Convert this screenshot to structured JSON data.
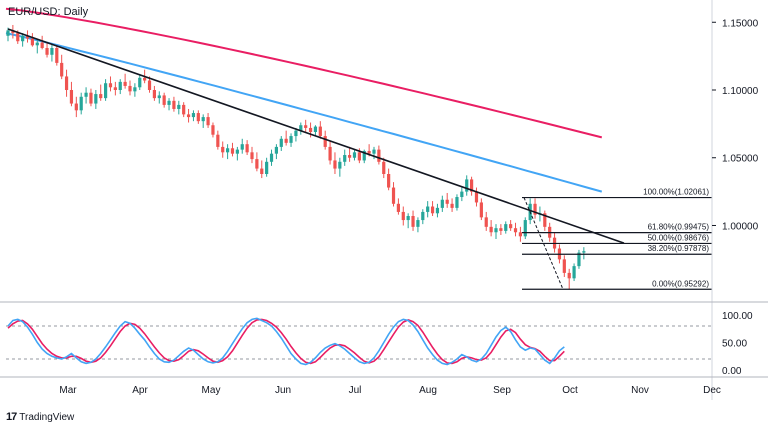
{
  "title": "EUR/USD: Daily",
  "brand": "TradingView",
  "brand_logo": "17",
  "chart_data": {
    "type": "candlestick",
    "title": "EUR/USD: Daily",
    "price_axis": {
      "ticks": [
        1.15,
        1.1,
        1.05,
        1.0
      ],
      "tick_labels": [
        "1.15000",
        "1.10000",
        "1.05000",
        "1.00000"
      ],
      "ylim": [
        0.945,
        1.162
      ]
    },
    "time_axis": {
      "labels": [
        "Mar",
        "Apr",
        "May",
        "Jun",
        "Jul",
        "Aug",
        "Sep",
        "Oct",
        "Nov",
        "Dec"
      ]
    },
    "candles_ohlc": [
      [
        1.14,
        1.146,
        1.136,
        1.144
      ],
      [
        1.144,
        1.148,
        1.138,
        1.142
      ],
      [
        1.142,
        1.144,
        1.134,
        1.136
      ],
      [
        1.136,
        1.142,
        1.132,
        1.14
      ],
      [
        1.14,
        1.144,
        1.135,
        1.138
      ],
      [
        1.138,
        1.142,
        1.132,
        1.133
      ],
      [
        1.133,
        1.138,
        1.127,
        1.135
      ],
      [
        1.135,
        1.14,
        1.13,
        1.131
      ],
      [
        1.131,
        1.135,
        1.124,
        1.126
      ],
      [
        1.126,
        1.134,
        1.121,
        1.131
      ],
      [
        1.131,
        1.133,
        1.118,
        1.12
      ],
      [
        1.12,
        1.126,
        1.108,
        1.11
      ],
      [
        1.11,
        1.115,
        1.095,
        1.1
      ],
      [
        1.1,
        1.106,
        1.088,
        1.09
      ],
      [
        1.09,
        1.095,
        1.08,
        1.085
      ],
      [
        1.085,
        1.098,
        1.082,
        1.095
      ],
      [
        1.095,
        1.102,
        1.09,
        1.098
      ],
      [
        1.098,
        1.101,
        1.088,
        1.09
      ],
      [
        1.09,
        1.1,
        1.086,
        1.097
      ],
      [
        1.097,
        1.104,
        1.092,
        1.094
      ],
      [
        1.094,
        1.108,
        1.092,
        1.105
      ],
      [
        1.105,
        1.11,
        1.099,
        1.102
      ],
      [
        1.102,
        1.106,
        1.096,
        1.1
      ],
      [
        1.1,
        1.108,
        1.097,
        1.106
      ],
      [
        1.106,
        1.112,
        1.101,
        1.103
      ],
      [
        1.103,
        1.107,
        1.096,
        1.099
      ],
      [
        1.099,
        1.105,
        1.095,
        1.102
      ],
      [
        1.102,
        1.111,
        1.1,
        1.109
      ],
      [
        1.109,
        1.115,
        1.105,
        1.107
      ],
      [
        1.107,
        1.11,
        1.098,
        1.1
      ],
      [
        1.1,
        1.103,
        1.092,
        1.094
      ],
      [
        1.094,
        1.099,
        1.09,
        1.096
      ],
      [
        1.096,
        1.098,
        1.087,
        1.089
      ],
      [
        1.089,
        1.094,
        1.085,
        1.092
      ],
      [
        1.092,
        1.095,
        1.084,
        1.086
      ],
      [
        1.086,
        1.092,
        1.082,
        1.089
      ],
      [
        1.089,
        1.091,
        1.08,
        1.082
      ],
      [
        1.082,
        1.086,
        1.076,
        1.08
      ],
      [
        1.08,
        1.085,
        1.077,
        1.083
      ],
      [
        1.083,
        1.085,
        1.075,
        1.077
      ],
      [
        1.077,
        1.082,
        1.072,
        1.08
      ],
      [
        1.08,
        1.083,
        1.072,
        1.074
      ],
      [
        1.074,
        1.076,
        1.065,
        1.067
      ],
      [
        1.067,
        1.07,
        1.056,
        1.058
      ],
      [
        1.058,
        1.062,
        1.05,
        1.054
      ],
      [
        1.054,
        1.06,
        1.049,
        1.057
      ],
      [
        1.057,
        1.061,
        1.051,
        1.053
      ],
      [
        1.053,
        1.058,
        1.048,
        1.056
      ],
      [
        1.056,
        1.064,
        1.053,
        1.06
      ],
      [
        1.06,
        1.063,
        1.052,
        1.054
      ],
      [
        1.054,
        1.058,
        1.046,
        1.049
      ],
      [
        1.049,
        1.054,
        1.04,
        1.042
      ],
      [
        1.042,
        1.048,
        1.035,
        1.038
      ],
      [
        1.038,
        1.05,
        1.036,
        1.047
      ],
      [
        1.047,
        1.056,
        1.044,
        1.053
      ],
      [
        1.053,
        1.06,
        1.049,
        1.058
      ],
      [
        1.058,
        1.066,
        1.055,
        1.064
      ],
      [
        1.064,
        1.07,
        1.059,
        1.061
      ],
      [
        1.061,
        1.068,
        1.058,
        1.066
      ],
      [
        1.066,
        1.072,
        1.062,
        1.07
      ],
      [
        1.07,
        1.076,
        1.067,
        1.074
      ],
      [
        1.074,
        1.078,
        1.069,
        1.072
      ],
      [
        1.072,
        1.076,
        1.065,
        1.069
      ],
      [
        1.069,
        1.074,
        1.066,
        1.073
      ],
      [
        1.073,
        1.077,
        1.064,
        1.066
      ],
      [
        1.066,
        1.07,
        1.056,
        1.058
      ],
      [
        1.058,
        1.062,
        1.045,
        1.048
      ],
      [
        1.048,
        1.054,
        1.038,
        1.042
      ],
      [
        1.042,
        1.05,
        1.036,
        1.047
      ],
      [
        1.047,
        1.056,
        1.044,
        1.052
      ],
      [
        1.052,
        1.058,
        1.047,
        1.05
      ],
      [
        1.05,
        1.056,
        1.048,
        1.054
      ],
      [
        1.054,
        1.057,
        1.046,
        1.048
      ],
      [
        1.048,
        1.056,
        1.046,
        1.055
      ],
      [
        1.055,
        1.06,
        1.051,
        1.053
      ],
      [
        1.053,
        1.058,
        1.049,
        1.056
      ],
      [
        1.056,
        1.059,
        1.045,
        1.047
      ],
      [
        1.047,
        1.05,
        1.035,
        1.038
      ],
      [
        1.038,
        1.042,
        1.026,
        1.028
      ],
      [
        1.028,
        1.032,
        1.014,
        1.016
      ],
      [
        1.016,
        1.02,
        1.008,
        1.01
      ],
      [
        1.01,
        1.014,
        1.0,
        1.004
      ],
      [
        1.004,
        1.009,
        0.998,
        1.007
      ],
      [
        1.007,
        1.011,
        0.996,
        0.999
      ],
      [
        0.999,
        1.006,
        0.995,
        1.004
      ],
      [
        1.004,
        1.012,
        1.001,
        1.01
      ],
      [
        1.01,
        1.018,
        1.006,
        1.014
      ],
      [
        1.014,
        1.018,
        1.007,
        1.009
      ],
      [
        1.009,
        1.016,
        1.006,
        1.013
      ],
      [
        1.013,
        1.022,
        1.01,
        1.019
      ],
      [
        1.019,
        1.024,
        1.013,
        1.016
      ],
      [
        1.016,
        1.02,
        1.01,
        1.013
      ],
      [
        1.013,
        1.023,
        1.011,
        1.021
      ],
      [
        1.021,
        1.028,
        1.018,
        1.025
      ],
      [
        1.025,
        1.037,
        1.022,
        1.034
      ],
      [
        1.034,
        1.036,
        1.022,
        1.025
      ],
      [
        1.025,
        1.028,
        1.014,
        1.017
      ],
      [
        1.017,
        1.02,
        1.004,
        1.006
      ],
      [
        1.006,
        1.01,
        0.996,
        0.999
      ],
      [
        0.999,
        1.004,
        0.992,
        0.995
      ],
      [
        0.995,
        1.001,
        0.99,
        0.998
      ],
      [
        0.998,
        1.001,
        0.993,
        0.996
      ],
      [
        0.996,
        1.003,
        0.994,
        1.001
      ],
      [
        1.001,
        1.004,
        0.996,
        0.998
      ],
      [
        0.998,
        1.002,
        0.992,
        0.995
      ],
      [
        0.995,
        0.999,
        0.988,
        0.992
      ],
      [
        0.992,
        1.006,
        0.99,
        1.004
      ],
      [
        1.004,
        1.02,
        1.001,
        1.016
      ],
      [
        1.016,
        1.02,
        1.005,
        1.008
      ],
      [
        1.008,
        1.014,
        1.003,
        1.009
      ],
      [
        1.009,
        1.011,
        0.996,
        0.999
      ],
      [
        0.999,
        1.002,
        0.988,
        0.991
      ],
      [
        0.991,
        0.995,
        0.98,
        0.983
      ],
      [
        0.983,
        0.986,
        0.972,
        0.975
      ],
      [
        0.975,
        0.978,
        0.962,
        0.965
      ],
      [
        0.965,
        0.968,
        0.953,
        0.961
      ],
      [
        0.961,
        0.972,
        0.959,
        0.97
      ],
      [
        0.97,
        0.982,
        0.968,
        0.98
      ],
      [
        0.98,
        0.984,
        0.975,
        0.981
      ]
    ],
    "moving_averages": [
      {
        "color": "#e91e63",
        "from": 1.16,
        "to": 1.065
      },
      {
        "color": "#42a5f5",
        "from": 1.142,
        "to": 1.025
      }
    ],
    "trendline": {
      "color": "#131722",
      "from_price": 1.145,
      "to_price": 0.987
    },
    "fibonacci": [
      {
        "label": "100.00%(1.02061)",
        "price": 1.02061
      },
      {
        "label": "61.80%(0.99475)",
        "price": 0.99475
      },
      {
        "label": "50.00%(0.98676)",
        "price": 0.98676
      },
      {
        "label": "38.20%(0.97878)",
        "price": 0.97878
      },
      {
        "label": "0.00%(0.95292)",
        "price": 0.95292
      }
    ],
    "stochastic": {
      "ticks": [
        100,
        50,
        0
      ],
      "tick_labels": [
        "100.00",
        "50.00",
        "0.00"
      ],
      "levels": [
        80,
        20
      ],
      "k_color": "#42a5f5",
      "d_color": "#e91e63",
      "k": [
        80,
        90,
        92,
        88,
        78,
        65,
        50,
        38,
        30,
        25,
        22,
        20,
        24,
        30,
        22,
        15,
        12,
        14,
        20,
        30,
        42,
        55,
        68,
        80,
        88,
        85,
        76,
        65,
        55,
        42,
        30,
        20,
        15,
        14,
        18,
        26,
        34,
        40,
        36,
        28,
        20,
        15,
        13,
        15,
        22,
        34,
        48,
        62,
        75,
        86,
        92,
        94,
        90,
        86,
        80,
        70,
        58,
        44,
        30,
        20,
        12,
        10,
        14,
        22,
        32,
        40,
        45,
        48,
        44,
        38,
        30,
        22,
        15,
        12,
        14,
        22,
        35,
        50,
        65,
        78,
        88,
        92,
        90,
        82,
        70,
        55,
        40,
        28,
        18,
        12,
        10,
        14,
        20,
        28,
        24,
        18,
        15,
        20,
        30,
        45,
        60,
        72,
        78,
        70,
        55,
        42,
        36,
        40,
        38,
        28,
        18,
        12,
        22,
        35,
        42
      ],
      "d": [
        76,
        84,
        89,
        90,
        84,
        74,
        61,
        48,
        38,
        30,
        25,
        22,
        22,
        25,
        25,
        21,
        16,
        14,
        16,
        22,
        32,
        44,
        57,
        70,
        80,
        85,
        83,
        76,
        66,
        54,
        42,
        31,
        22,
        17,
        16,
        19,
        26,
        34,
        37,
        35,
        29,
        22,
        16,
        14,
        17,
        24,
        35,
        49,
        63,
        76,
        86,
        91,
        92,
        90,
        85,
        78,
        68,
        56,
        43,
        31,
        21,
        14,
        12,
        15,
        23,
        32,
        40,
        45,
        46,
        44,
        38,
        31,
        23,
        16,
        13,
        16,
        24,
        37,
        51,
        65,
        78,
        87,
        91,
        88,
        81,
        69,
        55,
        41,
        29,
        19,
        13,
        12,
        15,
        21,
        24,
        22,
        19,
        18,
        22,
        32,
        46,
        60,
        71,
        74,
        68,
        56,
        46,
        41,
        39,
        34,
        25,
        17,
        17,
        25,
        34
      ]
    }
  }
}
